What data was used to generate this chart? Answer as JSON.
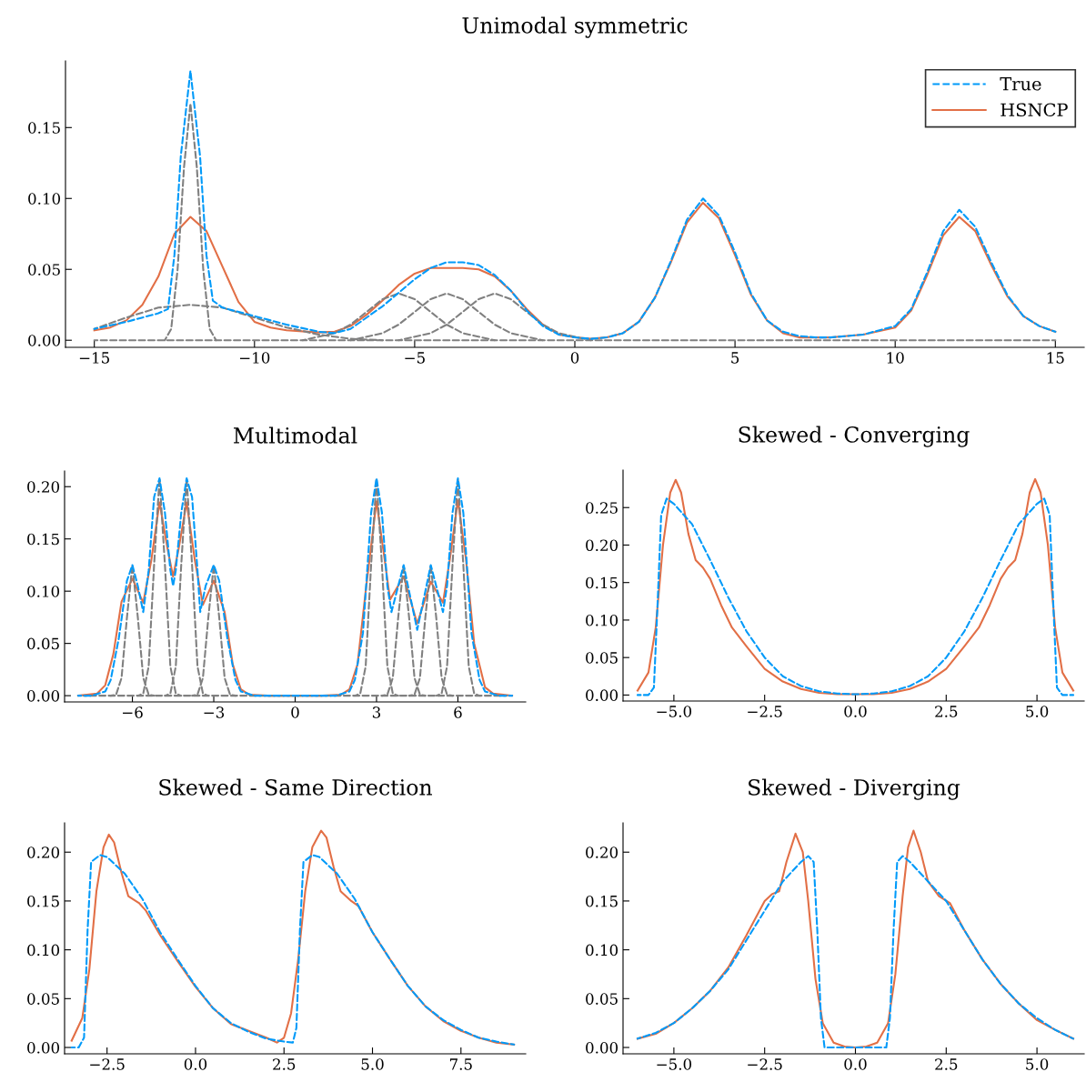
{
  "chart_data": [
    {
      "type": "line",
      "title": "Unimodal symmetric",
      "xlim": [
        -15.9,
        15.9
      ],
      "ylim": [
        -0.005,
        0.197
      ],
      "xticks": [
        {
          "value": -15,
          "label": "−15"
        },
        {
          "value": -10,
          "label": "−10"
        },
        {
          "value": -5,
          "label": "−5"
        },
        {
          "value": 0,
          "label": "0"
        },
        {
          "value": 5,
          "label": "5"
        },
        {
          "value": 10,
          "label": "10"
        },
        {
          "value": 15,
          "label": "15"
        }
      ],
      "yticks": [
        {
          "value": 0,
          "label": "0.00"
        },
        {
          "value": 0.05,
          "label": "0.05"
        },
        {
          "value": 0.1,
          "label": "0.10"
        },
        {
          "value": 0.15,
          "label": "0.15"
        }
      ],
      "grid": false,
      "legend": "top right",
      "series": [
        {
          "color": "#808080",
          "line_style": "dashed",
          "x": [
            -15,
            15
          ],
          "values": [
            0,
            0
          ]
        },
        {
          "color": "#808080",
          "line_style": "dashed",
          "x": [
            -15,
            -14,
            -13,
            -12,
            -11,
            -10,
            -9,
            -8,
            -7,
            -6
          ],
          "values": [
            0.008,
            0.016,
            0.023,
            0.025,
            0.023,
            0.016,
            0.009,
            0.004,
            0.001,
            0.0
          ]
        },
        {
          "color": "#808080",
          "line_style": "dashed",
          "x": [
            -12.8,
            -12.6,
            -12.4,
            -12.2,
            -12,
            -11.8,
            -11.6,
            -11.4,
            -11.2
          ],
          "values": [
            0.0,
            0.008,
            0.05,
            0.122,
            0.167,
            0.122,
            0.05,
            0.008,
            0.0
          ]
        },
        {
          "color": "#808080",
          "line_style": "dashed",
          "x": [
            -8.5,
            -7.5,
            -7,
            -6.5,
            -6,
            -5.5,
            -5,
            -4.5,
            -4,
            -3.5,
            -2.5
          ],
          "values": [
            0.0,
            0.005,
            0.011,
            0.02,
            0.029,
            0.033,
            0.029,
            0.02,
            0.011,
            0.005,
            0.0
          ]
        },
        {
          "color": "#808080",
          "line_style": "dashed",
          "x": [
            -7,
            -6,
            -5.5,
            -5,
            -4.5,
            -4,
            -3.5,
            -3,
            -2.5,
            -2,
            -1
          ],
          "values": [
            0.0,
            0.005,
            0.011,
            0.02,
            0.029,
            0.033,
            0.029,
            0.02,
            0.011,
            0.005,
            0.0
          ]
        },
        {
          "color": "#808080",
          "line_style": "dashed",
          "x": [
            -5.5,
            -4.5,
            -4,
            -3.5,
            -3,
            -2.5,
            -2,
            -1.5,
            -1,
            -0.5,
            0.5
          ],
          "values": [
            0.0,
            0.005,
            0.011,
            0.02,
            0.029,
            0.033,
            0.029,
            0.02,
            0.011,
            0.005,
            0.0
          ]
        },
        {
          "name": "True",
          "color": "#009af9",
          "line_style": "dashed",
          "x": [
            -15,
            -14,
            -13,
            -12.7,
            -12.5,
            -12.3,
            -12,
            -11.7,
            -11.5,
            -11.3,
            -11,
            -10,
            -9,
            -8,
            -7.5,
            -7,
            -6,
            -5,
            -4.5,
            -4,
            -3.5,
            -3,
            -2.5,
            -2,
            -1.5,
            -1,
            -0.5,
            0,
            0.5,
            1,
            1.5,
            2,
            2.5,
            3,
            3.5,
            4,
            4.5,
            5,
            5.5,
            6,
            6.5,
            7,
            7.5,
            8,
            9,
            10,
            10.5,
            11,
            11.5,
            12,
            12.5,
            13,
            13.5,
            14,
            14.5,
            15
          ],
          "values": [
            0.008,
            0.013,
            0.019,
            0.022,
            0.06,
            0.13,
            0.19,
            0.13,
            0.06,
            0.028,
            0.023,
            0.017,
            0.011,
            0.006,
            0.005,
            0.008,
            0.024,
            0.043,
            0.051,
            0.055,
            0.055,
            0.053,
            0.046,
            0.035,
            0.021,
            0.01,
            0.004,
            0.002,
            0.001,
            0.002,
            0.005,
            0.013,
            0.03,
            0.056,
            0.085,
            0.1,
            0.088,
            0.062,
            0.033,
            0.014,
            0.006,
            0.003,
            0.002,
            0.002,
            0.004,
            0.01,
            0.022,
            0.048,
            0.077,
            0.092,
            0.08,
            0.055,
            0.032,
            0.017,
            0.01,
            0.006
          ]
        },
        {
          "name": "HSNCP",
          "color": "#e26f46",
          "line_style": "solid",
          "x": [
            -15,
            -14.5,
            -14,
            -13.5,
            -13,
            -12.5,
            -12,
            -11.5,
            -11,
            -10.5,
            -10,
            -9.5,
            -9,
            -8,
            -7.5,
            -7,
            -6.5,
            -6,
            -5.5,
            -5,
            -4.5,
            -4,
            -3.5,
            -3,
            -2.5,
            -2,
            -1.5,
            -1,
            -0.5,
            0,
            0.5,
            1,
            1.5,
            2,
            2.5,
            3,
            3.5,
            4,
            4.5,
            5,
            5.5,
            6,
            6.5,
            7,
            7.5,
            8,
            9,
            10,
            10.5,
            11,
            11.5,
            12,
            12.5,
            13,
            13.5,
            14,
            14.5,
            15
          ],
          "values": [
            0.007,
            0.009,
            0.014,
            0.025,
            0.045,
            0.075,
            0.087,
            0.077,
            0.052,
            0.027,
            0.013,
            0.009,
            0.007,
            0.0055,
            0.006,
            0.01,
            0.018,
            0.028,
            0.039,
            0.047,
            0.051,
            0.051,
            0.051,
            0.05,
            0.045,
            0.035,
            0.022,
            0.011,
            0.004,
            0.002,
            0.001,
            0.002,
            0.005,
            0.013,
            0.03,
            0.055,
            0.083,
            0.097,
            0.086,
            0.06,
            0.032,
            0.014,
            0.005,
            0.002,
            0.002,
            0.002,
            0.004,
            0.009,
            0.021,
            0.046,
            0.074,
            0.087,
            0.077,
            0.053,
            0.031,
            0.017,
            0.01,
            0.006
          ]
        }
      ]
    },
    {
      "type": "line",
      "title": "Multimodal",
      "xlim": [
        -8.5,
        8.5
      ],
      "ylim": [
        -0.006,
        0.215
      ],
      "xticks": [
        {
          "value": -6,
          "label": "−6"
        },
        {
          "value": -3,
          "label": "−3"
        },
        {
          "value": 0,
          "label": "0"
        },
        {
          "value": 3,
          "label": "3"
        },
        {
          "value": 6,
          "label": "6"
        }
      ],
      "yticks": [
        {
          "value": 0,
          "label": "0.00"
        },
        {
          "value": 0.05,
          "label": "0.05"
        },
        {
          "value": 0.1,
          "label": "0.10"
        },
        {
          "value": 0.15,
          "label": "0.15"
        },
        {
          "value": 0.2,
          "label": "0.20"
        }
      ],
      "grid": false,
      "series": [
        {
          "color": "#808080",
          "line_style": "dashed",
          "x": [
            -7.8,
            7.8
          ],
          "values": [
            0,
            0
          ]
        },
        {
          "color": "#808080",
          "line_style": "dashed",
          "x": [
            -6.8,
            -6.6,
            -6.4,
            -6.2,
            -6,
            -5.8,
            -5.6,
            -5.4,
            -5.2
          ],
          "values": [
            0,
            0.001,
            0.017,
            0.075,
            0.125,
            0.075,
            0.017,
            0.001,
            0
          ]
        },
        {
          "color": "#808080",
          "line_style": "dashed",
          "x": [
            -5.8,
            -5.6,
            -5.4,
            -5.2,
            -5,
            -4.8,
            -4.6,
            -4.4,
            -4.2
          ],
          "values": [
            0,
            0.002,
            0.028,
            0.125,
            0.208,
            0.125,
            0.028,
            0.002,
            0
          ]
        },
        {
          "color": "#808080",
          "line_style": "dashed",
          "x": [
            -4.8,
            -4.6,
            -4.4,
            -4.2,
            -4,
            -3.8,
            -3.6,
            -3.4,
            -3.2
          ],
          "values": [
            0,
            0.002,
            0.028,
            0.125,
            0.208,
            0.125,
            0.028,
            0.002,
            0
          ]
        },
        {
          "color": "#808080",
          "line_style": "dashed",
          "x": [
            -3.8,
            -3.6,
            -3.4,
            -3.2,
            -3,
            -2.8,
            -2.6,
            -2.4,
            -2.2
          ],
          "values": [
            0,
            0.001,
            0.017,
            0.075,
            0.125,
            0.075,
            0.017,
            0.001,
            0
          ]
        },
        {
          "color": "#808080",
          "line_style": "dashed",
          "x": [
            2.2,
            2.4,
            2.6,
            2.8,
            3,
            3.2,
            3.4,
            3.6,
            3.8
          ],
          "values": [
            0,
            0.002,
            0.028,
            0.125,
            0.208,
            0.125,
            0.028,
            0.002,
            0
          ]
        },
        {
          "color": "#808080",
          "line_style": "dashed",
          "x": [
            3.2,
            3.4,
            3.6,
            3.8,
            4,
            4.2,
            4.4,
            4.6,
            4.8
          ],
          "values": [
            0,
            0.001,
            0.017,
            0.075,
            0.125,
            0.075,
            0.017,
            0.001,
            0
          ]
        },
        {
          "color": "#808080",
          "line_style": "dashed",
          "x": [
            4.2,
            4.4,
            4.6,
            4.8,
            5,
            5.2,
            5.4,
            5.6,
            5.8
          ],
          "values": [
            0,
            0.001,
            0.017,
            0.075,
            0.125,
            0.075,
            0.017,
            0.001,
            0
          ]
        },
        {
          "color": "#808080",
          "line_style": "dashed",
          "x": [
            5.2,
            5.4,
            5.6,
            5.8,
            6,
            6.2,
            6.4,
            6.6,
            6.8
          ],
          "values": [
            0,
            0.002,
            0.028,
            0.125,
            0.208,
            0.125,
            0.028,
            0.002,
            0
          ]
        },
        {
          "color": "#009af9",
          "line_style": "dashed",
          "x": [
            -8,
            -7.5,
            -7,
            -6.8,
            -6.5,
            -6.2,
            -6,
            -5.8,
            -5.6,
            -5.4,
            -5.2,
            -5,
            -4.8,
            -4.6,
            -4.5,
            -4.4,
            -4.2,
            -4,
            -3.8,
            -3.6,
            -3.5,
            -3.3,
            -3,
            -2.8,
            -2.5,
            -2.2,
            -2,
            -1.5,
            1.5,
            2,
            2.2,
            2.5,
            2.8,
            3,
            3.2,
            3.4,
            3.55,
            3.8,
            4,
            4.2,
            4.5,
            4.8,
            5,
            5.2,
            5.45,
            5.6,
            5.8,
            6,
            6.2,
            6.5,
            6.8,
            7,
            7.5,
            8
          ],
          "values": [
            0,
            0,
            0.004,
            0.015,
            0.055,
            0.11,
            0.125,
            0.105,
            0.08,
            0.12,
            0.19,
            0.208,
            0.175,
            0.12,
            0.105,
            0.12,
            0.175,
            0.208,
            0.19,
            0.12,
            0.08,
            0.105,
            0.125,
            0.11,
            0.055,
            0.015,
            0.004,
            0,
            0,
            0.004,
            0.015,
            0.06,
            0.175,
            0.208,
            0.175,
            0.105,
            0.08,
            0.105,
            0.125,
            0.1,
            0.063,
            0.1,
            0.125,
            0.105,
            0.08,
            0.105,
            0.175,
            0.208,
            0.175,
            0.06,
            0.015,
            0.004,
            0,
            0
          ]
        },
        {
          "color": "#e26f46",
          "line_style": "solid",
          "x": [
            -8,
            -7.3,
            -7,
            -6.7,
            -6.4,
            -6,
            -5.6,
            -5.3,
            -5,
            -4.7,
            -4.5,
            -4.3,
            -4,
            -3.7,
            -3.4,
            -3,
            -2.6,
            -2.3,
            -2,
            -1.7,
            -1,
            1,
            1.7,
            2,
            2.3,
            2.6,
            3,
            3.3,
            3.5,
            4,
            4.5,
            5,
            5.45,
            5.7,
            6,
            6.3,
            6.6,
            7,
            7.3,
            8
          ],
          "values": [
            0,
            0.002,
            0.01,
            0.04,
            0.09,
            0.112,
            0.089,
            0.13,
            0.185,
            0.14,
            0.114,
            0.14,
            0.185,
            0.13,
            0.087,
            0.11,
            0.08,
            0.03,
            0.006,
            0.001,
            0,
            0,
            0.001,
            0.006,
            0.03,
            0.1,
            0.186,
            0.13,
            0.092,
            0.114,
            0.069,
            0.109,
            0.089,
            0.13,
            0.187,
            0.13,
            0.05,
            0.008,
            0.002,
            0
          ]
        }
      ]
    },
    {
      "type": "line",
      "title": "Skewed - Converging",
      "xlim": [
        -6.4,
        6.3
      ],
      "ylim": [
        -0.008,
        0.3
      ],
      "xticks": [
        {
          "value": -5,
          "label": "−5.0"
        },
        {
          "value": -2.5,
          "label": "−2.5"
        },
        {
          "value": 0,
          "label": "0.0"
        },
        {
          "value": 2.5,
          "label": "2.5"
        },
        {
          "value": 5,
          "label": "5.0"
        }
      ],
      "yticks": [
        {
          "value": 0,
          "label": "0.00"
        },
        {
          "value": 0.05,
          "label": "0.05"
        },
        {
          "value": 0.1,
          "label": "0.10"
        },
        {
          "value": 0.15,
          "label": "0.15"
        },
        {
          "value": 0.2,
          "label": "0.20"
        },
        {
          "value": 0.25,
          "label": "0.25"
        }
      ],
      "grid": false,
      "series": [
        {
          "color": "#009af9",
          "line_style": "dashed",
          "x": [
            -6,
            -5.7,
            -5.55,
            -5.45,
            -5.35,
            -5.2,
            -5,
            -4.5,
            -4,
            -3.5,
            -3,
            -2.5,
            -2,
            -1.5,
            -1,
            -0.5,
            0,
            0.5,
            1,
            1.5,
            2,
            2.5,
            3,
            3.5,
            4,
            4.5,
            5,
            5.2,
            5.35,
            5.45,
            5.55,
            5.7,
            6
          ],
          "values": [
            0,
            0,
            0.01,
            0.12,
            0.24,
            0.262,
            0.255,
            0.228,
            0.18,
            0.13,
            0.085,
            0.05,
            0.025,
            0.012,
            0.005,
            0.002,
            0.001,
            0.002,
            0.005,
            0.012,
            0.025,
            0.05,
            0.085,
            0.13,
            0.18,
            0.228,
            0.255,
            0.262,
            0.24,
            0.12,
            0.01,
            0,
            0
          ]
        },
        {
          "color": "#e26f46",
          "line_style": "solid",
          "x": [
            -6,
            -5.7,
            -5.5,
            -5.3,
            -5.1,
            -4.95,
            -4.8,
            -4.6,
            -4.4,
            -4.2,
            -4,
            -3.7,
            -3.4,
            -3,
            -2.5,
            -2,
            -1.5,
            -1,
            -0.5,
            0,
            0.5,
            1,
            1.5,
            2,
            2.5,
            3,
            3.4,
            3.7,
            4,
            4.2,
            4.4,
            4.6,
            4.8,
            4.95,
            5.1,
            5.3,
            5.5,
            5.7,
            6
          ],
          "values": [
            0.006,
            0.03,
            0.09,
            0.2,
            0.27,
            0.287,
            0.27,
            0.215,
            0.18,
            0.17,
            0.155,
            0.12,
            0.09,
            0.065,
            0.035,
            0.018,
            0.008,
            0.003,
            0.001,
            0.001,
            0.001,
            0.003,
            0.008,
            0.018,
            0.035,
            0.065,
            0.09,
            0.12,
            0.155,
            0.17,
            0.18,
            0.215,
            0.27,
            0.288,
            0.27,
            0.2,
            0.09,
            0.03,
            0.006
          ]
        }
      ]
    },
    {
      "type": "line",
      "title": "Skewed - Same Direction",
      "xlim": [
        -3.7,
        9.33
      ],
      "ylim": [
        -0.0065,
        0.23
      ],
      "xticks": [
        {
          "value": -2.5,
          "label": "−2.5"
        },
        {
          "value": 0,
          "label": "0.0"
        },
        {
          "value": 2.5,
          "label": "2.5"
        },
        {
          "value": 5,
          "label": "5.0"
        },
        {
          "value": 7.5,
          "label": "7.5"
        }
      ],
      "yticks": [
        {
          "value": 0,
          "label": "0.00"
        },
        {
          "value": 0.05,
          "label": "0.05"
        },
        {
          "value": 0.1,
          "label": "0.10"
        },
        {
          "value": 0.15,
          "label": "0.15"
        },
        {
          "value": 0.2,
          "label": "0.20"
        }
      ],
      "grid": false,
      "series": [
        {
          "color": "#009af9",
          "line_style": "dashed",
          "x": [
            -3.5,
            -3.3,
            -3.15,
            -3.05,
            -2.95,
            -2.7,
            -2.5,
            -2,
            -1.5,
            -1,
            -0.5,
            0,
            0.5,
            1,
            1.5,
            2,
            2.5,
            2.75,
            2.85,
            2.95,
            3.05,
            3.3,
            3.5,
            4,
            4.5,
            5,
            5.5,
            6,
            6.5,
            7,
            7.5,
            8,
            8.5,
            9
          ],
          "values": [
            0,
            0,
            0.01,
            0.12,
            0.19,
            0.197,
            0.195,
            0.178,
            0.152,
            0.118,
            0.09,
            0.063,
            0.04,
            0.025,
            0.016,
            0.009,
            0.006,
            0.005,
            0.02,
            0.12,
            0.19,
            0.197,
            0.195,
            0.178,
            0.152,
            0.118,
            0.09,
            0.063,
            0.042,
            0.028,
            0.018,
            0.01,
            0.006,
            0.003
          ]
        },
        {
          "color": "#e26f46",
          "line_style": "solid",
          "x": [
            -3.5,
            -3.2,
            -3,
            -2.8,
            -2.6,
            -2.45,
            -2.3,
            -2.1,
            -1.9,
            -1.6,
            -1.4,
            -1,
            -0.5,
            0,
            0.5,
            1,
            1.5,
            2,
            2.3,
            2.5,
            2.7,
            2.9,
            3.1,
            3.3,
            3.55,
            3.7,
            3.9,
            4.1,
            4.4,
            4.6,
            5,
            5.5,
            6,
            6.5,
            7,
            7.5,
            8,
            8.5,
            9
          ],
          "values": [
            0.007,
            0.03,
            0.08,
            0.16,
            0.205,
            0.218,
            0.21,
            0.18,
            0.155,
            0.148,
            0.14,
            0.115,
            0.088,
            0.062,
            0.04,
            0.024,
            0.017,
            0.01,
            0.005,
            0.01,
            0.035,
            0.09,
            0.16,
            0.205,
            0.222,
            0.215,
            0.185,
            0.16,
            0.15,
            0.145,
            0.118,
            0.09,
            0.063,
            0.042,
            0.027,
            0.017,
            0.01,
            0.005,
            0.003
          ]
        }
      ]
    },
    {
      "type": "line",
      "title": "Skewed - Diverging",
      "xlim": [
        -6.4,
        6.3
      ],
      "ylim": [
        -0.0065,
        0.23
      ],
      "xticks": [
        {
          "value": -5,
          "label": "−5.0"
        },
        {
          "value": -2.5,
          "label": "−2.5"
        },
        {
          "value": 0,
          "label": "0.0"
        },
        {
          "value": 2.5,
          "label": "2.5"
        },
        {
          "value": 5,
          "label": "5.0"
        }
      ],
      "yticks": [
        {
          "value": 0,
          "label": "0.00"
        },
        {
          "value": 0.05,
          "label": "0.05"
        },
        {
          "value": 0.1,
          "label": "0.10"
        },
        {
          "value": 0.15,
          "label": "0.15"
        },
        {
          "value": 0.2,
          "label": "0.20"
        }
      ],
      "grid": false,
      "series": [
        {
          "color": "#009af9",
          "line_style": "dashed",
          "x": [
            -6,
            -5.5,
            -5,
            -4.5,
            -4,
            -3.5,
            -3,
            -2.5,
            -2,
            -1.5,
            -1.3,
            -1.15,
            -1.05,
            -0.95,
            -0.85,
            0,
            0.85,
            0.95,
            1.05,
            1.15,
            1.3,
            1.5,
            2,
            2.5,
            3,
            3.5,
            4,
            4.5,
            5,
            5.5,
            6
          ],
          "values": [
            0.009,
            0.015,
            0.025,
            0.04,
            0.058,
            0.08,
            0.11,
            0.14,
            0.17,
            0.19,
            0.196,
            0.19,
            0.12,
            0.03,
            0,
            0,
            0,
            0.03,
            0.12,
            0.19,
            0.196,
            0.19,
            0.17,
            0.15,
            0.12,
            0.09,
            0.065,
            0.045,
            0.03,
            0.018,
            0.009
          ]
        },
        {
          "color": "#e26f46",
          "line_style": "solid",
          "x": [
            -6,
            -5.5,
            -5,
            -4.5,
            -4,
            -3.5,
            -3,
            -2.5,
            -2.3,
            -2.1,
            -1.9,
            -1.65,
            -1.45,
            -1.3,
            -1.1,
            -0.9,
            -0.6,
            -0.3,
            0,
            0.3,
            0.6,
            0.9,
            1.1,
            1.3,
            1.45,
            1.6,
            1.8,
            2,
            2.3,
            2.6,
            3,
            3.5,
            4,
            4.5,
            5,
            5.5,
            6
          ],
          "values": [
            0.009,
            0.014,
            0.025,
            0.04,
            0.058,
            0.082,
            0.115,
            0.15,
            0.157,
            0.16,
            0.19,
            0.219,
            0.2,
            0.15,
            0.07,
            0.025,
            0.005,
            0.001,
            0,
            0.001,
            0.005,
            0.025,
            0.075,
            0.155,
            0.205,
            0.222,
            0.2,
            0.17,
            0.155,
            0.148,
            0.12,
            0.09,
            0.065,
            0.045,
            0.028,
            0.018,
            0.009
          ]
        }
      ]
    }
  ]
}
